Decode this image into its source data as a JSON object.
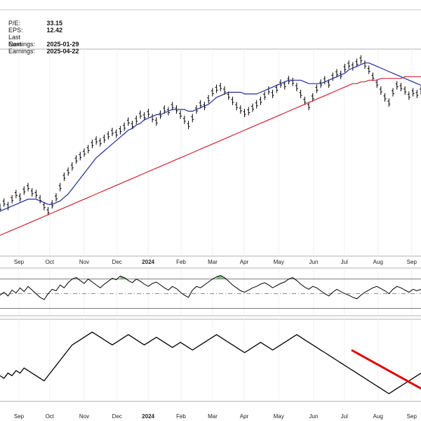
{
  "info": {
    "pe_label": "P/E:",
    "pe_value": "33.15",
    "eps_label": "EPS:",
    "eps_value": "12.42",
    "last_earnings_label": "Last Earnings:",
    "last_earnings_value": "2025-01-29",
    "next_earnings_label": "Next Earnings:",
    "next_earnings_value": "2025-04-22"
  },
  "chart_data": [
    {
      "type": "line",
      "panel": "price",
      "series": [
        {
          "style": "ohlc-bars",
          "color": "#000000",
          "values": [
            228,
            231,
            229,
            233,
            236,
            234,
            238,
            240,
            237,
            236,
            233,
            229,
            226,
            230,
            234,
            240,
            246,
            249,
            252,
            256,
            258,
            260,
            262,
            265,
            267,
            266,
            268,
            270,
            272,
            271,
            273,
            275,
            278,
            276,
            279,
            282,
            281,
            283,
            280,
            278,
            282,
            285,
            284,
            287,
            285,
            282,
            279,
            276,
            280,
            285,
            288,
            287,
            291,
            295,
            297,
            298,
            296,
            293,
            290,
            287,
            285,
            283,
            284,
            286,
            288,
            290,
            293,
            296,
            294,
            297,
            300,
            299,
            302,
            301,
            298,
            294,
            290,
            287,
            292,
            297,
            300,
            302,
            300,
            304,
            306,
            305,
            309,
            311,
            310,
            312,
            314,
            311,
            308,
            304,
            300,
            296,
            292,
            289,
            295,
            299,
            298,
            296,
            293,
            295,
            294,
            296
          ]
        },
        {
          "style": "line",
          "color": "#1f2a9a",
          "values": [
            226,
            227,
            228,
            229,
            230,
            231,
            232,
            233,
            233,
            233,
            232,
            231,
            230,
            230,
            231,
            232,
            234,
            236,
            239,
            242,
            245,
            248,
            251,
            254,
            257,
            259,
            261,
            263,
            265,
            267,
            269,
            271,
            273,
            274,
            276,
            277,
            279,
            280,
            281,
            282,
            282,
            283,
            284,
            285,
            285,
            285,
            285,
            284,
            284,
            285,
            286,
            287,
            288,
            290,
            292,
            293,
            294,
            295,
            295,
            295,
            295,
            294,
            294,
            294,
            294,
            295,
            296,
            297,
            298,
            299,
            300,
            301,
            302,
            302,
            302,
            302,
            301,
            300,
            300,
            300,
            300,
            301,
            302,
            303,
            304,
            305,
            306,
            308,
            309,
            310,
            311,
            312,
            312,
            311,
            310,
            309,
            308,
            307,
            306,
            305,
            304,
            303,
            302,
            301,
            300,
            299
          ]
        },
        {
          "style": "line",
          "color": "#cc2233",
          "values": [
            212,
            213,
            214,
            215,
            216,
            217,
            218,
            219,
            220,
            221,
            222,
            223,
            224,
            225,
            226,
            227,
            228,
            229,
            230,
            231,
            232,
            233,
            234,
            235,
            236,
            237,
            238,
            239,
            240,
            241,
            242,
            243,
            244,
            245,
            246,
            247,
            248,
            249,
            250,
            251,
            252,
            253,
            254,
            255,
            256,
            257,
            258,
            259,
            260,
            261,
            262,
            263,
            264,
            265,
            266,
            267,
            268,
            269,
            270,
            271,
            272,
            273,
            274,
            275,
            276,
            277,
            278,
            279,
            280,
            281,
            282,
            283,
            284,
            285,
            286,
            287,
            288,
            289,
            290,
            291,
            292,
            293,
            294,
            295,
            296,
            297,
            298,
            299,
            300,
            300,
            301,
            301,
            302,
            302,
            302,
            303,
            303,
            303,
            303,
            303,
            303,
            304,
            304,
            304,
            304,
            304
          ]
        }
      ]
    },
    {
      "type": "line",
      "panel": "oscillator",
      "series": [
        {
          "style": "line",
          "color": "#000000",
          "values": [
            48,
            52,
            47,
            55,
            51,
            58,
            53,
            60,
            55,
            50,
            45,
            42,
            50,
            56,
            54,
            62,
            58,
            65,
            70,
            72,
            68,
            64,
            70,
            66,
            62,
            58,
            63,
            67,
            71,
            69,
            74,
            72,
            68,
            65,
            70,
            67,
            63,
            60,
            64,
            66,
            62,
            58,
            55,
            60,
            57,
            52,
            48,
            45,
            55,
            60,
            58,
            62,
            66,
            70,
            73,
            75,
            72,
            67,
            62,
            58,
            54,
            52,
            55,
            58,
            60,
            63,
            65,
            62,
            58,
            61,
            64,
            66,
            70,
            72,
            68,
            63,
            59,
            56,
            60,
            58,
            54,
            50,
            47,
            52,
            56,
            53,
            50,
            48,
            45,
            43,
            48,
            52,
            55,
            58,
            60,
            57,
            54,
            50,
            56,
            60,
            58,
            55,
            52,
            56,
            54,
            56
          ]
        }
      ],
      "bands": [
        30,
        50,
        70
      ]
    },
    {
      "type": "line",
      "panel": "relative-strength",
      "series": [
        {
          "style": "line",
          "color": "#000000",
          "values": [
            100,
            99,
            101,
            100,
            102,
            101,
            103,
            102,
            101,
            100,
            99,
            98,
            100,
            102,
            104,
            106,
            108,
            110,
            112,
            113,
            114,
            115,
            116,
            117,
            116,
            115,
            114,
            113,
            112,
            113,
            114,
            115,
            116,
            115,
            114,
            113,
            112,
            113,
            114,
            115,
            114,
            113,
            112,
            111,
            112,
            113,
            112,
            111,
            110,
            111,
            112,
            113,
            114,
            115,
            116,
            115,
            114,
            113,
            112,
            111,
            110,
            109,
            110,
            111,
            112,
            113,
            112,
            111,
            110,
            111,
            112,
            113,
            114,
            115,
            116,
            115,
            114,
            113,
            112,
            111,
            110,
            109,
            108,
            107,
            106,
            105,
            104,
            103,
            102,
            101,
            100,
            99,
            98,
            97,
            96,
            95,
            94,
            93,
            94,
            95,
            96,
            97,
            98,
            99,
            100,
            101
          ]
        },
        {
          "style": "trendline",
          "color": "#e00000",
          "values": [
            110,
            95
          ]
        }
      ]
    }
  ],
  "x_axis": {
    "tick_labels": [
      "Sep",
      "Oct",
      "Nov",
      "Dec",
      "2024",
      "Feb",
      "Mar",
      "Apr",
      "May",
      "Jun",
      "Jul",
      "Aug",
      "Sep"
    ]
  }
}
